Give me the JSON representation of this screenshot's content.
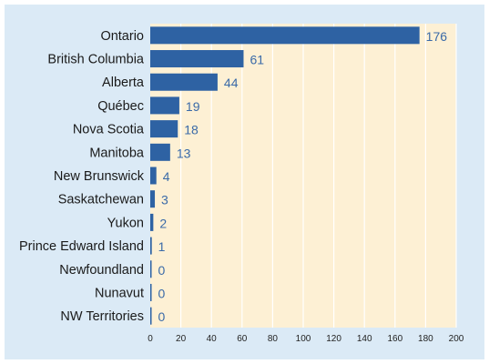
{
  "chart_data": {
    "type": "bar",
    "orientation": "horizontal",
    "categories": [
      "Ontario",
      "British Columbia",
      "Alberta",
      "Québec",
      "Nova Scotia",
      "Manitoba",
      "New Brunswick",
      "Saskatchewan",
      "Yukon",
      "Prince Edward Island",
      "Newfoundland",
      "Nunavut",
      "NW Territories"
    ],
    "values": [
      176,
      61,
      44,
      19,
      18,
      13,
      4,
      3,
      2,
      1,
      0,
      0,
      0
    ],
    "value_labels": [
      "176",
      "61",
      "44",
      "19",
      "18",
      "13",
      "4",
      "3",
      "2",
      "1",
      "0",
      "0",
      "0"
    ],
    "xlim": [
      0,
      200
    ],
    "xticks": [
      0,
      20,
      40,
      60,
      80,
      100,
      120,
      140,
      160,
      180,
      200
    ],
    "xtick_labels": [
      "0",
      "20",
      "40",
      "60",
      "80",
      "100",
      "120",
      "140",
      "160",
      "180",
      "200"
    ],
    "title": "",
    "xlabel": "",
    "ylabel": "",
    "grid": "vertical",
    "legend": "none",
    "colors": {
      "bar": "#2e62a3",
      "value_text": "#3a6aa8",
      "plot_background": "#fdf0d4",
      "frame_background": "#dbeaf6",
      "grid": "#ffffff"
    }
  }
}
